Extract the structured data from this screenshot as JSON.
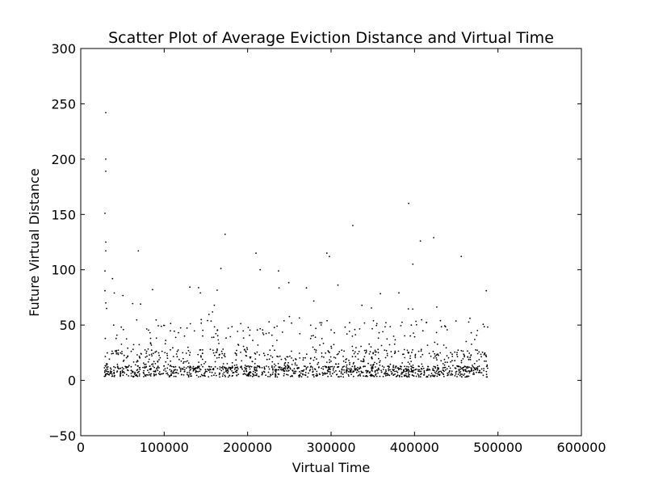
{
  "chart_data": {
    "type": "scatter",
    "title": "Scatter Plot of Average Eviction Distance and Virtual Time",
    "xlabel": "Virtual Time",
    "ylabel": "Future Virtual Distance",
    "xlim": [
      0,
      600000
    ],
    "ylim": [
      -50,
      300
    ],
    "xticks": [
      0,
      100000,
      200000,
      300000,
      400000,
      500000,
      600000
    ],
    "xtick_labels": [
      "0",
      "100000",
      "200000",
      "300000",
      "400000",
      "500000",
      "600000"
    ],
    "yticks": [
      -50,
      0,
      50,
      100,
      150,
      200,
      250,
      300
    ],
    "ytick_labels": [
      "−50",
      "0",
      "50",
      "100",
      "150",
      "200",
      "250",
      "300"
    ],
    "grid": false,
    "legend": "none",
    "marker_color": "#000000",
    "x_data_range": [
      28000,
      488000
    ],
    "approx_point_count": 1600,
    "notable_points": [
      {
        "x": 30000,
        "y": 242
      },
      {
        "x": 30000,
        "y": 200
      },
      {
        "x": 30000,
        "y": 189
      },
      {
        "x": 29000,
        "y": 151
      },
      {
        "x": 30000,
        "y": 125
      },
      {
        "x": 30000,
        "y": 117
      },
      {
        "x": 29000,
        "y": 99
      },
      {
        "x": 29000,
        "y": 81
      },
      {
        "x": 30000,
        "y": 70
      },
      {
        "x": 31000,
        "y": 65
      },
      {
        "x": 38000,
        "y": 92
      },
      {
        "x": 69000,
        "y": 117
      },
      {
        "x": 86000,
        "y": 82
      },
      {
        "x": 168000,
        "y": 101
      },
      {
        "x": 173000,
        "y": 132
      },
      {
        "x": 210000,
        "y": 115
      },
      {
        "x": 215000,
        "y": 100
      },
      {
        "x": 237000,
        "y": 99
      },
      {
        "x": 295000,
        "y": 115
      },
      {
        "x": 298000,
        "y": 112
      },
      {
        "x": 326000,
        "y": 140
      },
      {
        "x": 393000,
        "y": 160
      },
      {
        "x": 398000,
        "y": 105
      },
      {
        "x": 407000,
        "y": 126
      },
      {
        "x": 423000,
        "y": 129
      },
      {
        "x": 456000,
        "y": 112
      },
      {
        "x": 486000,
        "y": 81
      }
    ]
  }
}
